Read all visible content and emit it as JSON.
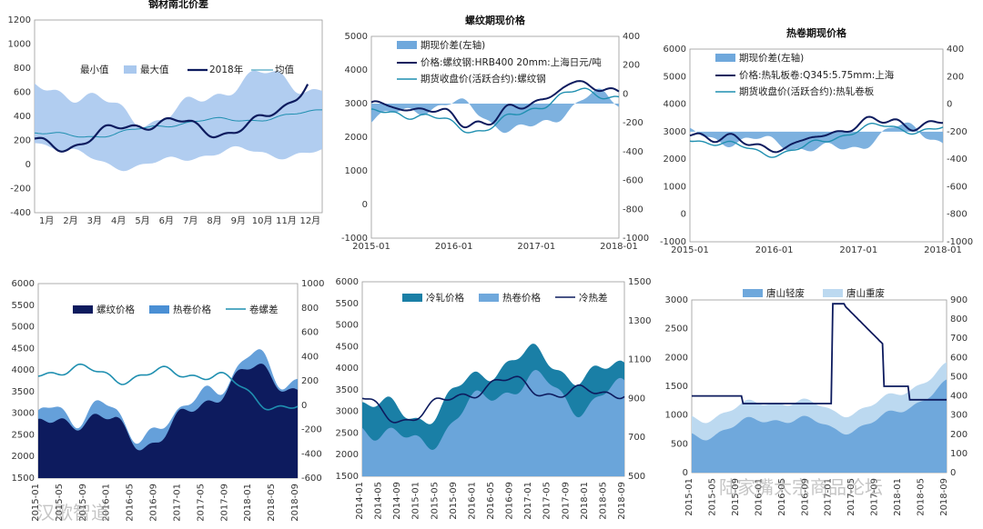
{
  "colors": {
    "navy": "#0d1b5e",
    "mid": "#4a8fd4",
    "light": "#a9c8ee",
    "teal": "#1f8fb0",
    "lightblue": "#bcd9f0",
    "steel": "#6fa8dc"
  },
  "watermark": {
    "left": "汉歌智道",
    "right": "陆家嘴大宗商品论坛"
  },
  "chart_data": [
    {
      "id": "c1",
      "type": "area",
      "title": "钢材南北价差",
      "categories": [
        "1月",
        "2月",
        "3月",
        "4月",
        "5月",
        "6月",
        "7月",
        "8月",
        "9月",
        "10月",
        "11月",
        "12月"
      ],
      "y_left": [
        -400,
        -200,
        0,
        200,
        400,
        600,
        800,
        1000,
        1200
      ],
      "legend": [
        "最小值",
        "最大值",
        "2018年",
        "均值"
      ]
    },
    {
      "id": "c2",
      "type": "area",
      "title": "螺纹期现价格",
      "categories": [
        "2015-01",
        "2016-01",
        "2017-01",
        "2018-01"
      ],
      "y_left": [
        -1000,
        0,
        1000,
        2000,
        3000,
        4000,
        5000
      ],
      "y_right": [
        -1000,
        -800,
        -600,
        -400,
        -200,
        0,
        200,
        400
      ],
      "legend": [
        "期现价差(左轴)",
        "价格:螺纹钢:HRB400 20mm:上海日元/吨",
        "期货收盘价(活跃合约):螺纹钢"
      ]
    },
    {
      "id": "c3",
      "type": "area",
      "title": "热卷期现价格",
      "categories": [
        "2015-01",
        "2016-01",
        "2017-01",
        "2018-01"
      ],
      "y_left": [
        -1000,
        0,
        1000,
        2000,
        3000,
        4000,
        5000,
        6000
      ],
      "y_right": [
        -1000,
        -800,
        -600,
        -400,
        -200,
        0,
        200,
        400
      ],
      "legend": [
        "期现价差(左轴)",
        "价格:热轧板卷:Q345:5.75mm:上海",
        "期货收盘价(活跃合约):热轧卷板"
      ]
    },
    {
      "id": "c4",
      "type": "area",
      "title": "",
      "categories": [
        "2015-01",
        "2015-05",
        "2015-09",
        "2016-01",
        "2016-05",
        "2016-09",
        "2017-01",
        "2017-05",
        "2017-09",
        "2018-01",
        "2018-05",
        "2018-09"
      ],
      "y_left": [
        1500,
        2000,
        2500,
        3000,
        3500,
        4000,
        4500,
        5000,
        5500,
        6000
      ],
      "y_right": [
        -600,
        -400,
        -200,
        0,
        200,
        400,
        600,
        800,
        1000
      ],
      "legend": [
        "螺纹价格",
        "热卷价格",
        "卷螺差"
      ]
    },
    {
      "id": "c5",
      "type": "area",
      "title": "",
      "categories": [
        "2014-01",
        "2014-05",
        "2014-09",
        "2015-01",
        "2015-05",
        "2015-09",
        "2016-01",
        "2016-05",
        "2016-09",
        "2017-01",
        "2017-05",
        "2017-09",
        "2018-01",
        "2018-05",
        "2018-09"
      ],
      "y_left": [
        1500,
        2000,
        2500,
        3000,
        3500,
        4000,
        4500,
        5000,
        5500,
        6000
      ],
      "y_right": [
        500,
        700,
        900,
        1100,
        1300,
        1500
      ],
      "legend": [
        "冷轧价格",
        "热卷价格",
        "冷热差"
      ]
    },
    {
      "id": "c6",
      "type": "area",
      "title": "",
      "categories": [
        "2015-01",
        "2015-05",
        "2015-09",
        "2016-01",
        "2016-05",
        "2016-09",
        "2017-01",
        "2017-05",
        "2017-09",
        "2018-01",
        "2018-05",
        "2018-09"
      ],
      "y_left": [
        0,
        500,
        1000,
        1500,
        2000,
        2500,
        3000
      ],
      "y_right": [
        0,
        100,
        200,
        300,
        400,
        500,
        600,
        700,
        800,
        900
      ],
      "legend": [
        "唐山轻废",
        "唐山重废"
      ]
    }
  ]
}
